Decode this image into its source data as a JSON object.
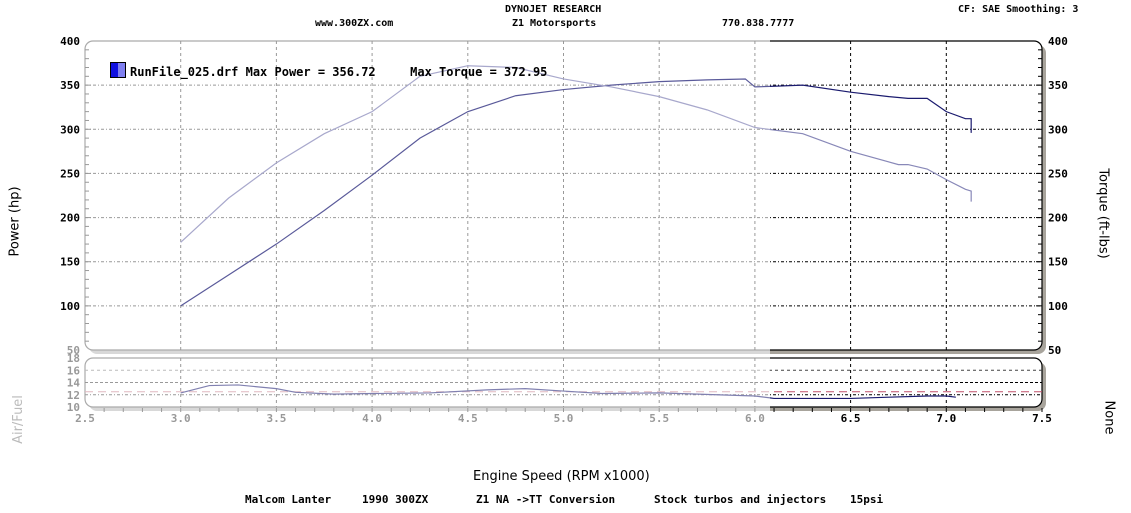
{
  "header": {
    "company": "DYNOJET RESEARCH",
    "website": "www.300ZX.com",
    "shop": "Z1 Motorsports",
    "phone": "770.838.7777",
    "settings": "CF: SAE  Smoothing: 3"
  },
  "legend": {
    "run_file": "RunFile_025.drf",
    "max_power_label": "Max Power = 356.72",
    "max_torque_label": "Max Torque = 372.95"
  },
  "axes": {
    "left_label": "Power (hp)",
    "right_label": "Torque (ft-lbs)",
    "afr_label": "Air/Fuel",
    "afr_right_label": "None",
    "x_label": "Engine Speed (RPM x1000)"
  },
  "footer": {
    "owner": "Malcom Lanter",
    "vehicle": "1990 300ZX",
    "conversion": "Z1  NA ->TT Conversion",
    "mods": "Stock turbos and injectors",
    "boost": "15psi"
  },
  "chart_data": [
    {
      "type": "line",
      "title": "Dynojet Power/Torque",
      "xlabel": "Engine Speed (RPM x1000)",
      "ylabel": "Power (hp)",
      "y2label": "Torque (ft-lbs)",
      "xlim": [
        2.5,
        7.5
      ],
      "ylim": [
        50,
        400
      ],
      "x_ticks": [
        "2.5",
        "3.0",
        "3.5",
        "4.0",
        "4.5",
        "5.0",
        "5.5",
        "6.0",
        "6.5",
        "7.0",
        "7.5"
      ],
      "y_ticks": [
        "400",
        "350",
        "300",
        "250",
        "200",
        "150",
        "100",
        "50"
      ],
      "grid": true,
      "series": [
        {
          "name": "Power (hp)",
          "color": "#1a1a6e",
          "x": [
            3.0,
            3.25,
            3.5,
            3.75,
            4.0,
            4.25,
            4.5,
            4.75,
            5.0,
            5.25,
            5.5,
            5.75,
            5.95,
            6.0,
            6.25,
            6.5,
            6.7,
            6.8,
            6.9,
            7.0,
            7.1,
            7.13,
            7.13
          ],
          "y": [
            100,
            135,
            170,
            208,
            248,
            290,
            320,
            338,
            345,
            350,
            354,
            356,
            357,
            348,
            350,
            342,
            337,
            335,
            335,
            320,
            312,
            312,
            296
          ]
        },
        {
          "name": "Torque (ft-lbs)",
          "color": "#8888b8",
          "x": [
            3.0,
            3.25,
            3.5,
            3.75,
            4.0,
            4.25,
            4.5,
            4.75,
            5.0,
            5.25,
            5.5,
            5.75,
            6.0,
            6.25,
            6.5,
            6.75,
            6.8,
            6.9,
            7.0,
            7.1,
            7.13,
            7.13
          ],
          "y": [
            172,
            222,
            262,
            295,
            320,
            360,
            372,
            370,
            357,
            348,
            337,
            322,
            302,
            295,
            275,
            260,
            260,
            255,
            243,
            232,
            230,
            218
          ]
        }
      ]
    },
    {
      "type": "line",
      "title": "Air/Fuel",
      "xlim": [
        2.5,
        7.5
      ],
      "ylim": [
        10,
        18
      ],
      "y_ticks": [
        "18",
        "16",
        "14",
        "12",
        "10"
      ],
      "reference_lines": [
        14,
        12.5,
        12
      ],
      "series": [
        {
          "name": "Air/Fuel",
          "color": "#1a1a6e",
          "x": [
            3.0,
            3.15,
            3.3,
            3.5,
            3.6,
            3.8,
            4.0,
            4.3,
            4.6,
            4.8,
            5.0,
            5.2,
            5.5,
            5.8,
            6.0,
            6.1,
            6.5,
            6.7,
            6.9,
            7.0,
            7.05
          ],
          "y": [
            12.3,
            13.5,
            13.6,
            13.0,
            12.4,
            12.1,
            12.2,
            12.3,
            12.8,
            13.0,
            12.6,
            12.2,
            12.3,
            12.0,
            11.8,
            11.4,
            11.4,
            11.6,
            11.8,
            11.8,
            11.6
          ]
        }
      ]
    }
  ]
}
